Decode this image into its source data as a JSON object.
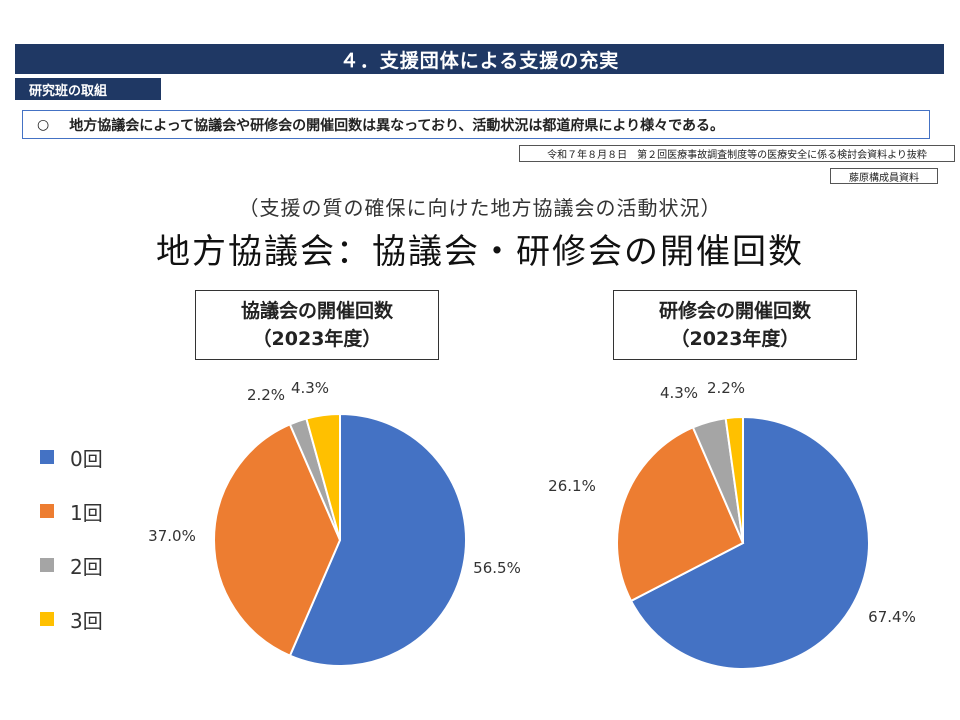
{
  "header": {
    "title": "４．支援団体による支援の充実",
    "section_tag": "研究班の取組"
  },
  "bullet": {
    "mark": "○",
    "text": "地方協議会によって協議会や研修会の開催回数は異なっており、活動状況は都道府県により様々である。"
  },
  "notes": {
    "source": "令和７年８月８日　第２回医療事故調査制度等の医療安全に係る検討会資料より抜粋",
    "author": "藤原構成員資料"
  },
  "subtitle": "（支援の質の確保に向けた地方協議会の活動状況）",
  "main_title": "地方協議会：協議会・研修会の開催回数",
  "legend": [
    {
      "label": "0回",
      "color": "#4472c4"
    },
    {
      "label": "1回",
      "color": "#ed7d31"
    },
    {
      "label": "2回",
      "color": "#a5a5a5"
    },
    {
      "label": "3回",
      "color": "#ffc000"
    }
  ],
  "chart_data": [
    {
      "type": "pie",
      "title": "協議会の開催回数",
      "subtitle": "（2023年度）",
      "categories": [
        "0回",
        "1回",
        "2回",
        "3回"
      ],
      "values": [
        56.5,
        37.0,
        2.2,
        4.3
      ],
      "labels": [
        "56.5%",
        "37.0%",
        "2.2%",
        "4.3%"
      ],
      "colors": [
        "#4472c4",
        "#ed7d31",
        "#a5a5a5",
        "#ffc000"
      ]
    },
    {
      "type": "pie",
      "title": "研修会の開催回数",
      "subtitle": "（2023年度）",
      "categories": [
        "0回",
        "1回",
        "2回",
        "3回"
      ],
      "values": [
        67.4,
        26.1,
        4.3,
        2.2
      ],
      "labels": [
        "67.4%",
        "26.1%",
        "4.3%",
        "2.2%"
      ],
      "colors": [
        "#4472c4",
        "#ed7d31",
        "#a5a5a5",
        "#ffc000"
      ]
    }
  ]
}
